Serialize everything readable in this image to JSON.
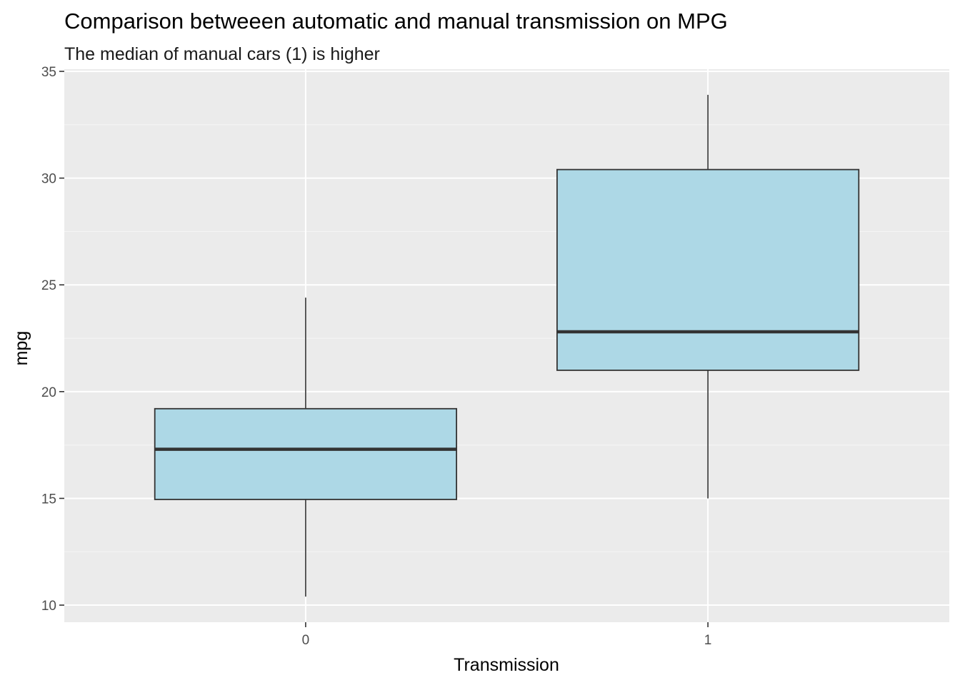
{
  "chart_data": {
    "type": "box",
    "title": "Comparison betweeen automatic and manual transmission on MPG",
    "subtitle": "The median of manual cars (1) is higher",
    "xlabel": "Transmission",
    "ylabel": "mpg",
    "ylim": [
      9.2,
      35.1
    ],
    "y_ticks": [
      10,
      15,
      20,
      25,
      30,
      35
    ],
    "y_tick_labels": [
      "10",
      "15",
      "20",
      "25",
      "30",
      "35"
    ],
    "categories": [
      "0",
      "1"
    ],
    "boxes": [
      {
        "category": "0",
        "min": 10.4,
        "q1": 14.95,
        "median": 17.3,
        "q3": 19.2,
        "max": 24.4
      },
      {
        "category": "1",
        "min": 15.0,
        "q1": 21.0,
        "median": 22.8,
        "q3": 30.4,
        "max": 33.9
      }
    ],
    "grid": true,
    "legend": "none",
    "colors": {
      "panel": "#ebebeb",
      "grid_major": "#ffffff",
      "grid_minor": "#f5f5f5",
      "box_fill": "#add8e6",
      "box_line": "#333333",
      "tick": "#333333"
    }
  }
}
